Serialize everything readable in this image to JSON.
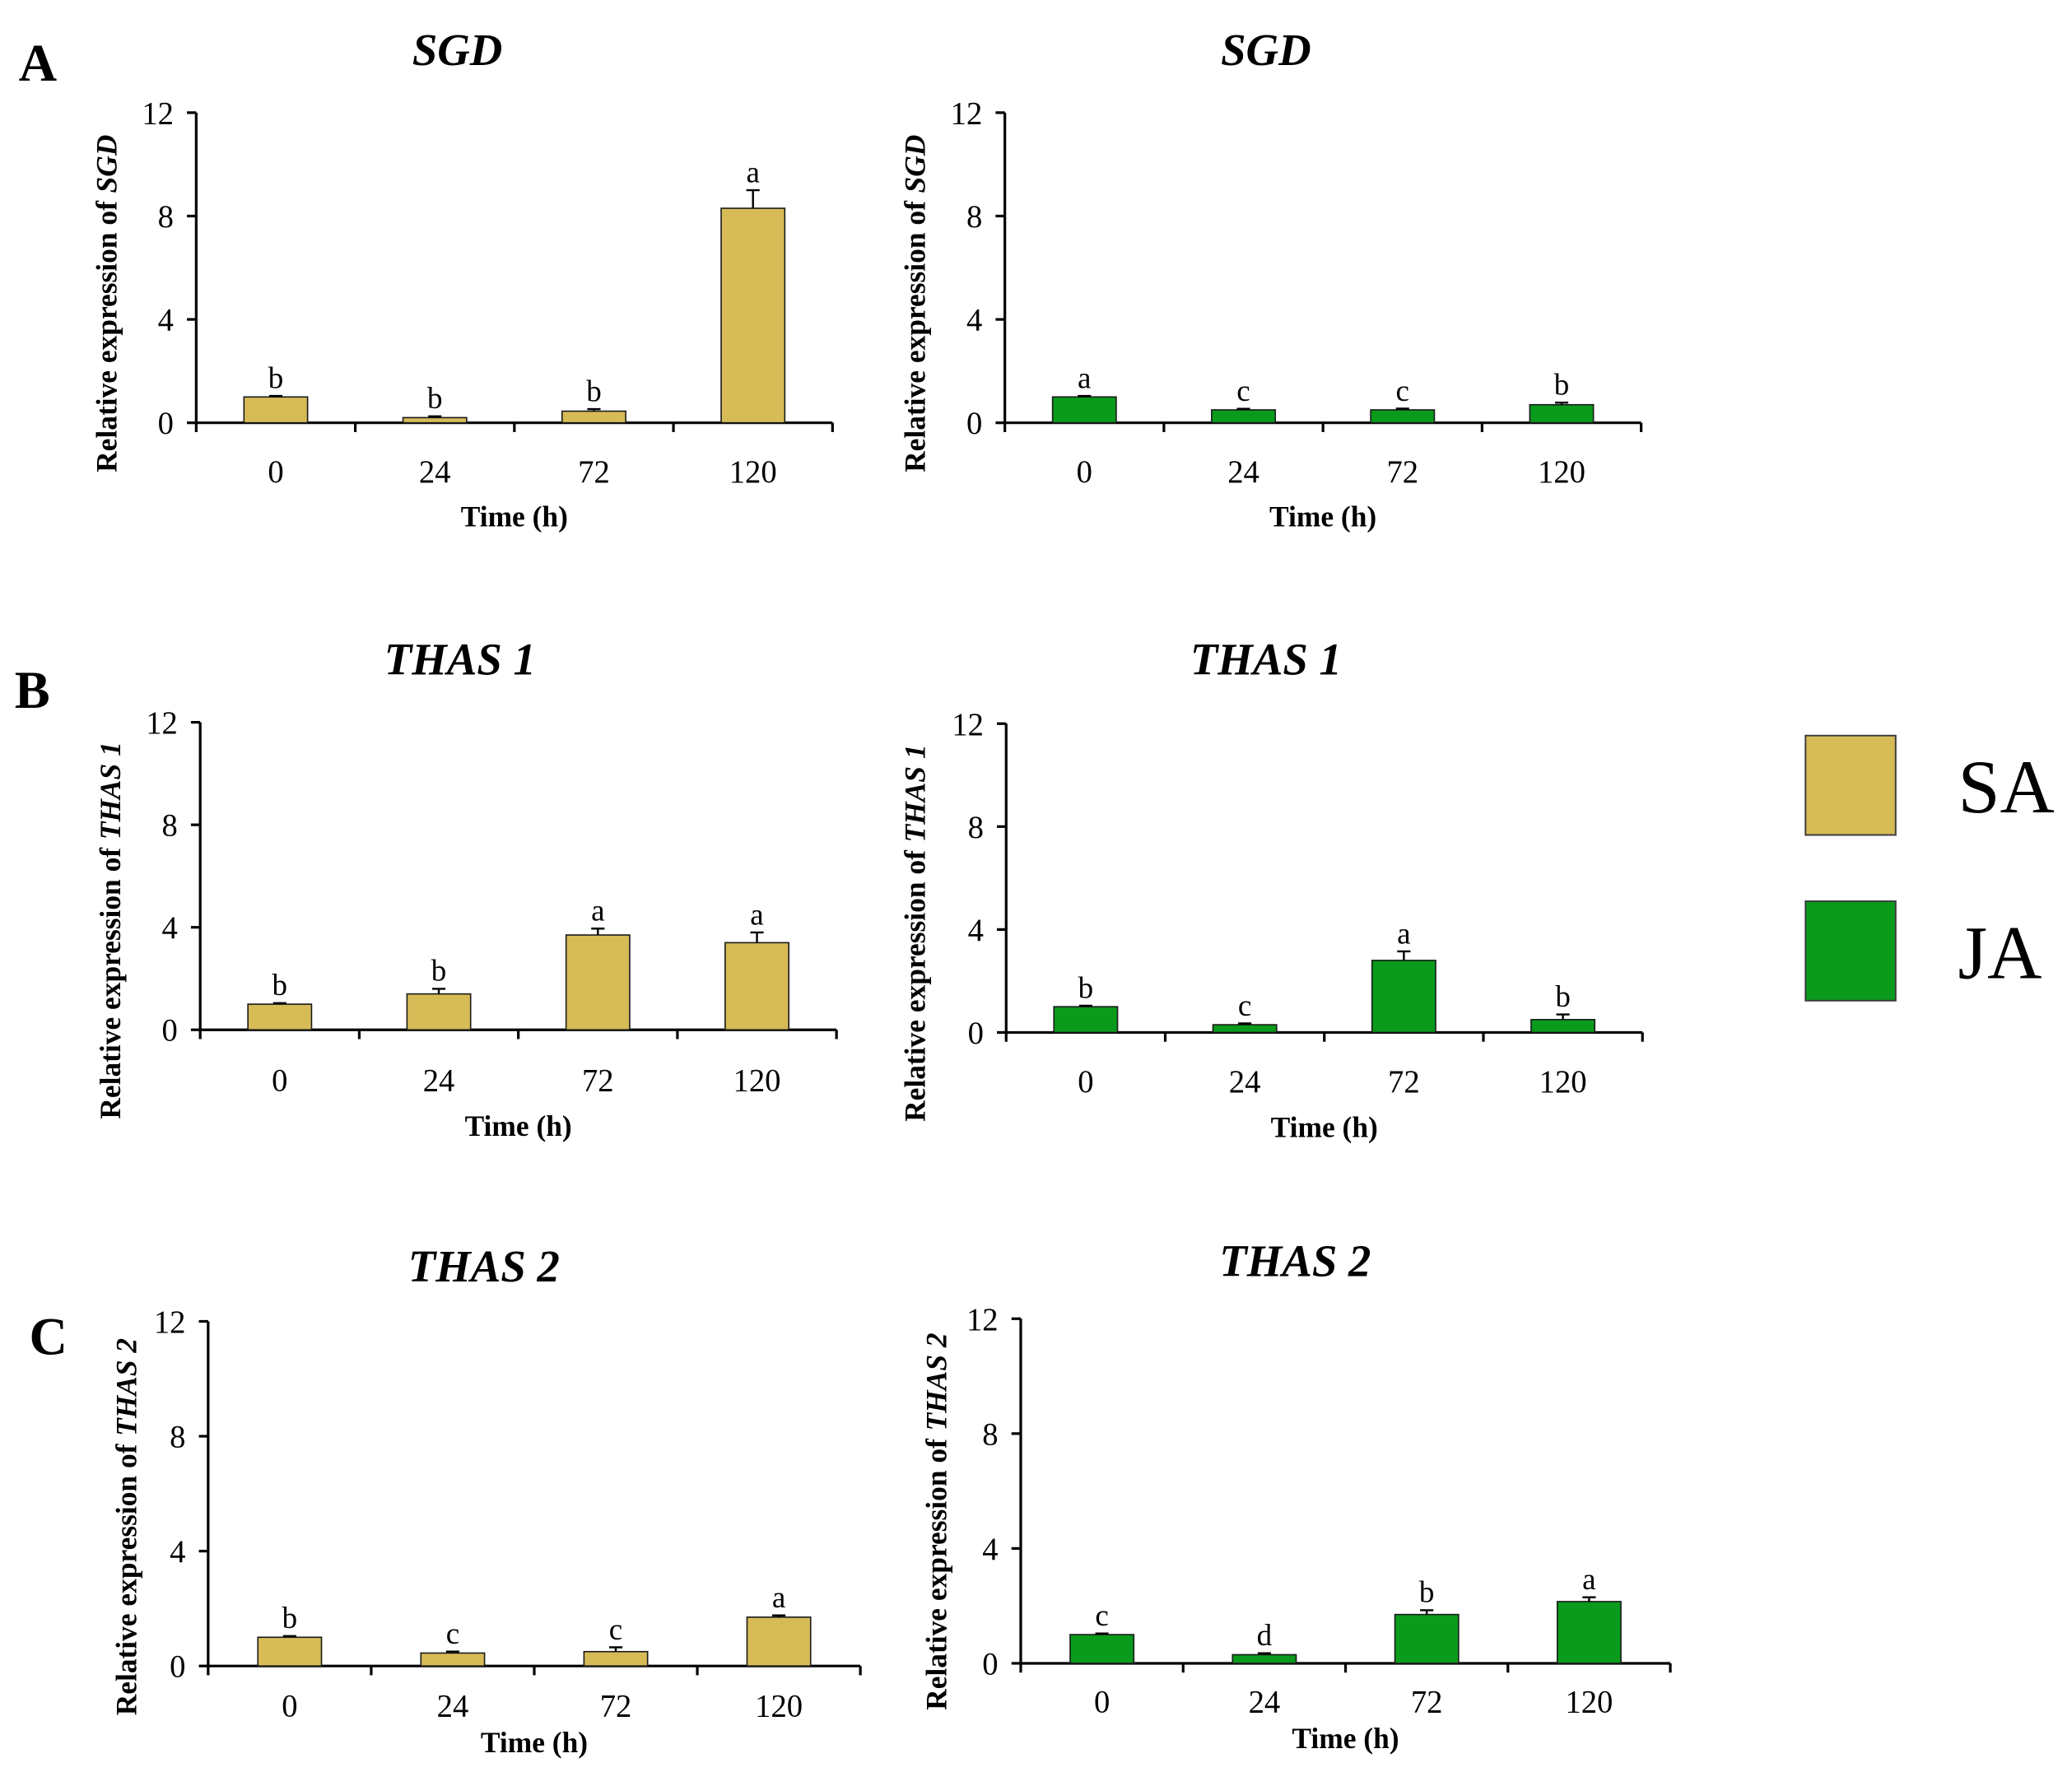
{
  "figure": {
    "panel_labels": [
      "A",
      "B",
      "C"
    ],
    "legend": [
      {
        "name": "SA",
        "color": "#D6BB57"
      },
      {
        "name": "JA",
        "color": "#0A9A1C"
      }
    ]
  },
  "chart_data": [
    {
      "type": "bar",
      "title": "SGD",
      "ylabel": {
        "prefix": "Relative expression of",
        "gene": "SGD"
      },
      "xlabel": "Time (h)",
      "categories": [
        "0",
        "24",
        "72",
        "120"
      ],
      "ylim": [
        0,
        12
      ],
      "yticks": [
        0,
        4,
        8,
        12
      ],
      "series": [
        {
          "name": "SA",
          "values": [
            1.0,
            0.2,
            0.45,
            8.3
          ],
          "errors": [
            0.04,
            0.05,
            0.08,
            0.7
          ]
        }
      ],
      "significance_letters": [
        "b",
        "b",
        "b",
        "a"
      ]
    },
    {
      "type": "bar",
      "title": "SGD",
      "ylabel": {
        "prefix": "Relative expression of",
        "gene": "SGD"
      },
      "xlabel": "Time (h)",
      "categories": [
        "0",
        "24",
        "72",
        "120"
      ],
      "ylim": [
        0,
        12
      ],
      "yticks": [
        0,
        4,
        8,
        12
      ],
      "series": [
        {
          "name": "JA",
          "values": [
            1.0,
            0.5,
            0.5,
            0.7
          ],
          "errors": [
            0.04,
            0.04,
            0.05,
            0.08
          ]
        }
      ],
      "significance_letters": [
        "a",
        "c",
        "c",
        "b"
      ]
    },
    {
      "type": "bar",
      "title": "THAS 1",
      "ylabel": {
        "prefix": "Relative expression of",
        "gene": "THAS 1"
      },
      "xlabel": "Time (h)",
      "categories": [
        "0",
        "24",
        "72",
        "120"
      ],
      "ylim": [
        0,
        12
      ],
      "yticks": [
        0,
        4,
        8,
        12
      ],
      "series": [
        {
          "name": "SA",
          "values": [
            1.0,
            1.4,
            3.7,
            3.4
          ],
          "errors": [
            0.04,
            0.2,
            0.25,
            0.4
          ]
        }
      ],
      "significance_letters": [
        "b",
        "b",
        "a",
        "a"
      ]
    },
    {
      "type": "bar",
      "title": "THAS 1",
      "ylabel": {
        "prefix": "Relative expression of",
        "gene": "THAS 1"
      },
      "xlabel": "Time (h)",
      "categories": [
        "0",
        "24",
        "72",
        "120"
      ],
      "ylim": [
        0,
        12
      ],
      "yticks": [
        0,
        4,
        8,
        12
      ],
      "series": [
        {
          "name": "JA",
          "values": [
            1.0,
            0.3,
            2.8,
            0.5
          ],
          "errors": [
            0.04,
            0.05,
            0.35,
            0.2
          ]
        }
      ],
      "significance_letters": [
        "b",
        "c",
        "a",
        "b"
      ]
    },
    {
      "type": "bar",
      "title": "THAS 2",
      "ylabel": {
        "prefix": "Relative expression of",
        "gene": "THAS 2"
      },
      "xlabel": "Time (h)",
      "categories": [
        "0",
        "24",
        "72",
        "120"
      ],
      "ylim": [
        0,
        12
      ],
      "yticks": [
        0,
        4,
        8,
        12
      ],
      "series": [
        {
          "name": "SA",
          "values": [
            1.0,
            0.45,
            0.5,
            1.7
          ],
          "errors": [
            0.04,
            0.05,
            0.15,
            0.06
          ]
        }
      ],
      "significance_letters": [
        "b",
        "c",
        "c",
        "a"
      ]
    },
    {
      "type": "bar",
      "title": "THAS 2",
      "ylabel": {
        "prefix": "Relative expression of",
        "gene": "THAS 2"
      },
      "xlabel": "Time (h)",
      "categories": [
        "0",
        "24",
        "72",
        "120"
      ],
      "ylim": [
        0,
        12
      ],
      "yticks": [
        0,
        4,
        8,
        12
      ],
      "series": [
        {
          "name": "JA",
          "values": [
            1.0,
            0.3,
            1.7,
            2.15
          ],
          "errors": [
            0.04,
            0.05,
            0.15,
            0.15
          ]
        }
      ],
      "significance_letters": [
        "c",
        "d",
        "b",
        "a"
      ]
    }
  ]
}
